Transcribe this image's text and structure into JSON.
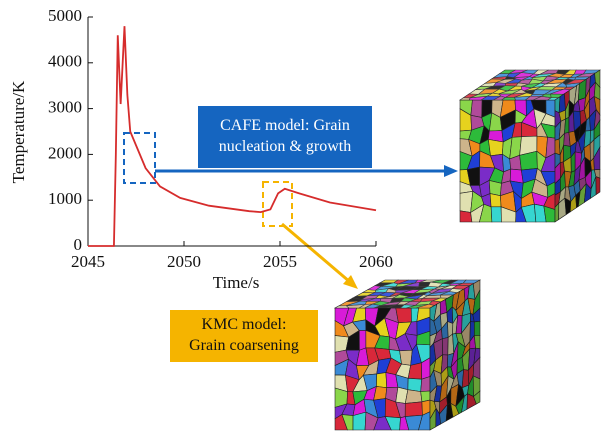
{
  "chart_data": {
    "type": "line",
    "x_label": "Time/s",
    "y_label": "Temperature/K",
    "x": [
      2045,
      2046.35,
      2046.45,
      2046.55,
      2046.7,
      2046.9,
      2047.05,
      2047.2,
      2047.5,
      2048,
      2048.75,
      2049.8,
      2051.3,
      2053.4,
      2054,
      2054.5,
      2054.9,
      2055.25,
      2056,
      2057.6,
      2060
    ],
    "series": [
      {
        "color": "#d62c2c",
        "values": [
          0,
          0,
          2000,
          4600,
          3100,
          4800,
          3300,
          2500,
          2200,
          1700,
          1300,
          1050,
          880,
          760,
          740,
          800,
          1150,
          1250,
          1150,
          950,
          780
        ]
      }
    ],
    "xlim": [
      2045,
      2060
    ],
    "xticks": [
      2045,
      2050,
      2055,
      2060
    ],
    "ylim": [
      0,
      5000
    ],
    "yticks": [
      0,
      1000,
      2000,
      3000,
      4000,
      5000
    ],
    "annotations": [
      {
        "lines": [
          "CAFE model: Grain",
          "nucleation & growth"
        ],
        "color": "#1565c0"
      },
      {
        "lines": [
          "KMC model:",
          "Grain coarsening"
        ],
        "color": "#f5b400"
      }
    ]
  }
}
